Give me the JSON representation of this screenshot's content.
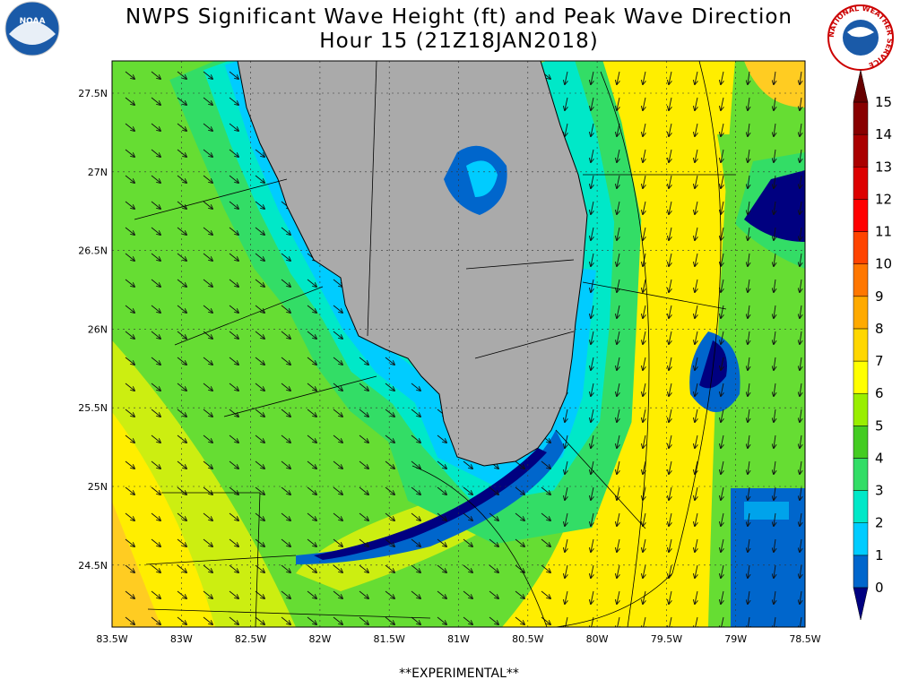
{
  "header": {
    "title": [
      "NWPS Significant Wave Height (ft) and Peak Wave Direction",
      "Hour 15 (21Z18JAN2018)"
    ]
  },
  "logos": {
    "left": "NOAA",
    "right": "NATIONAL WEATHER SERVICE"
  },
  "map": {
    "lon_labels": [
      "83.5W",
      "83W",
      "82.5W",
      "82W",
      "81.5W",
      "81W",
      "80.5W",
      "80W",
      "79.5W",
      "79W",
      "78.5W"
    ],
    "lat_labels": [
      "27.5N",
      "27N",
      "26.5N",
      "26N",
      "25.5N",
      "25N",
      "24.5N"
    ]
  },
  "colorbar": {
    "labels": [
      0,
      1,
      2,
      3,
      4,
      5,
      6,
      7,
      8,
      9,
      10,
      11,
      12,
      13,
      14,
      15
    ],
    "colors": [
      "#0066cc",
      "#00ccff",
      "#00e8c8",
      "#33dd66",
      "#44cc22",
      "#99ee00",
      "#ffff00",
      "#ffd700",
      "#ffaa00",
      "#ff7700",
      "#ff4400",
      "#ff0000",
      "#dd0000",
      "#aa0000",
      "#880000"
    ],
    "under": "#000080",
    "over": "#660000"
  },
  "footer": "**EXPERIMENTAL**"
}
